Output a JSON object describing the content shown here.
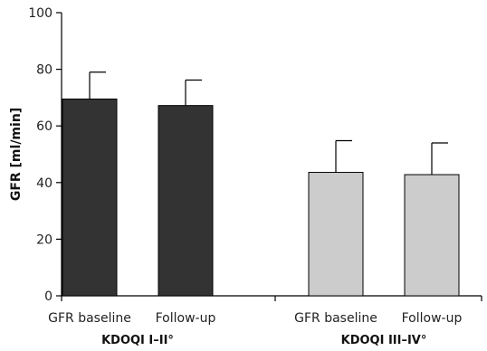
{
  "chart_data": {
    "type": "bar",
    "ylabel": "GFR [ml/min]",
    "ylim": [
      0,
      100
    ],
    "yticks": [
      0,
      20,
      40,
      60,
      80,
      100
    ],
    "groups": [
      {
        "name": "KDOQI I–II°",
        "color": "#333333",
        "bars": [
          {
            "label": "GFR baseline",
            "value": 69.5,
            "error": 9.5
          },
          {
            "label": "Follow-up",
            "value": 67.2,
            "error": 9.0
          }
        ]
      },
      {
        "name": "KDOQI III–IV°",
        "color": "#cccccc",
        "bars": [
          {
            "label": "GFR baseline",
            "value": 43.6,
            "error": 11.2
          },
          {
            "label": "Follow-up",
            "value": 42.8,
            "error": 11.2
          }
        ]
      }
    ]
  }
}
